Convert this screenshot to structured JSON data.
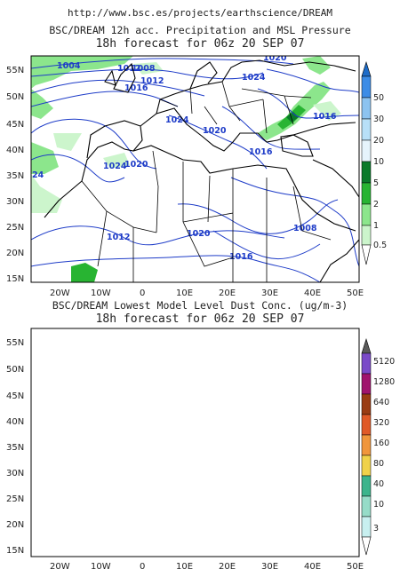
{
  "header": {
    "url": "http://www.bsc.es/projects/earthscience/DREAM"
  },
  "maps": [
    {
      "title_line1": "BSC/DREAM 12h acc. Precipitation and MSL Pressure",
      "title_line2": "18h forecast for 06z 20 SEP 07",
      "lat_labels": [
        "55N",
        "50N",
        "45N",
        "40N",
        "35N",
        "30N",
        "25N",
        "20N",
        "15N"
      ],
      "lon_labels": [
        "20W",
        "10W",
        "0",
        "10E",
        "20E",
        "30E",
        "40E",
        "50E"
      ],
      "colorbar_labels": [
        "50",
        "30",
        "20",
        "10",
        "5",
        "2",
        "1",
        "0.5"
      ],
      "colorbar_colors": [
        "#1e6cc8",
        "#3c8ce6",
        "#8cc3f0",
        "#b8e0f8",
        "#0a7a2a",
        "#28b432",
        "#8ce68c",
        "#ccf5cc"
      ],
      "isobar_labels": [
        "1004",
        "1008",
        "1012",
        "1016",
        "1024",
        "1020",
        "1024",
        "1016",
        "1024",
        "1020",
        "1016",
        "1020",
        "1012",
        "24",
        "1012",
        "1020",
        "1016",
        "1008"
      ]
    },
    {
      "title_line1": "BSC/DREAM Lowest Model Level Dust Conc. (ug/m-3)",
      "title_line2": "18h forecast for 06z 20 SEP 07",
      "lat_labels": [
        "55N",
        "50N",
        "45N",
        "40N",
        "35N",
        "30N",
        "25N",
        "20N",
        "15N"
      ],
      "lon_labels": [
        "20W",
        "10W",
        "0",
        "10E",
        "20E",
        "30E",
        "40E",
        "50E"
      ],
      "colorbar_labels": [
        "5120",
        "1280",
        "640",
        "320",
        "160",
        "80",
        "40",
        "10",
        "3"
      ],
      "colorbar_colors": [
        "#7a4ac8",
        "#a0146e",
        "#9a3c14",
        "#e05a28",
        "#f0963c",
        "#f0d24a",
        "#3cb48c",
        "#96dcc8",
        "#c8f0f0",
        "#ffffff"
      ]
    }
  ]
}
